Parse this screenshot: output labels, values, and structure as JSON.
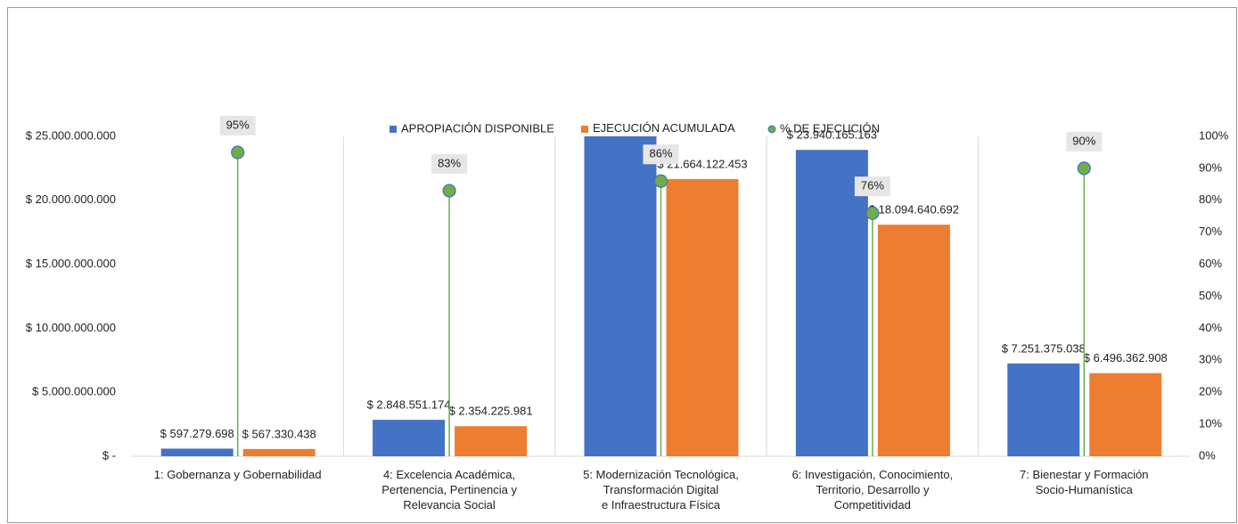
{
  "chart_data": {
    "type": "bar",
    "categories": [
      "1: Gobernanza y Gobernabilidad",
      "4:   Excelencia Académica,\nPertenencia, Pertinencia y\nRelevancia Social",
      "5: Modernización Tecnológica,\nTransformación Digital\ne Infraestructura Física",
      "6:  Investigación, Conocimiento,\nTerritorio, Desarrollo y\nCompetitividad",
      "7:  Bienestar y Formación\nSocio-Humanística"
    ],
    "series": [
      {
        "name": "APROPIACIÓN DISPONIBLE",
        "color": "#4472c4",
        "values": [
          597279698,
          2848551174,
          25190000000,
          23940165163,
          7251375038
        ],
        "value_labels": [
          "$ 597.279.698",
          "$ 2.848.551.174",
          null,
          "$ 23.940.165.163",
          "$ 7.251.375.038"
        ]
      },
      {
        "name": "EJECUCIÓN ACUMULADA (RP)*",
        "color": "#ed7d31",
        "values": [
          567330438,
          2354225981,
          21664122453,
          18094640692,
          6496362908
        ],
        "value_labels": [
          "$ 567.330.438",
          "$ 2.354.225.981",
          "$ 21.664.122.453",
          "$ 18.094.640.692",
          "$ 6.496.362.908"
        ]
      },
      {
        "name": "% DE  EJECUCIÓN",
        "color": "#70ad47",
        "axis": "y2",
        "type": "dropline",
        "values": [
          95,
          83,
          86,
          76,
          90
        ],
        "value_labels": [
          "95%",
          "83%",
          "86%",
          "76%",
          "90%"
        ]
      }
    ],
    "ylim": [
      0,
      25000000000
    ],
    "yticks": [
      {
        "value": 0,
        "label": "$ -"
      },
      {
        "value": 5000000000,
        "label": "$ 5.000.000.000"
      },
      {
        "value": 10000000000,
        "label": "$ 10.000.000.000"
      },
      {
        "value": 15000000000,
        "label": "$ 15.000.000.000"
      },
      {
        "value": 20000000000,
        "label": "$ 20.000.000.000"
      },
      {
        "value": 25000000000,
        "label": "$ 25.000.000.000"
      }
    ],
    "y2lim": [
      0,
      100
    ],
    "y2ticks": [
      {
        "value": 0,
        "label": "0%"
      },
      {
        "value": 10,
        "label": "10%"
      },
      {
        "value": 20,
        "label": "20%"
      },
      {
        "value": 30,
        "label": "30%"
      },
      {
        "value": 40,
        "label": "40%"
      },
      {
        "value": 50,
        "label": "50%"
      },
      {
        "value": 60,
        "label": "60%"
      },
      {
        "value": 70,
        "label": "70%"
      },
      {
        "value": 80,
        "label": "80%"
      },
      {
        "value": 90,
        "label": "90%"
      },
      {
        "value": 100,
        "label": "100%"
      }
    ],
    "legend": "top"
  }
}
